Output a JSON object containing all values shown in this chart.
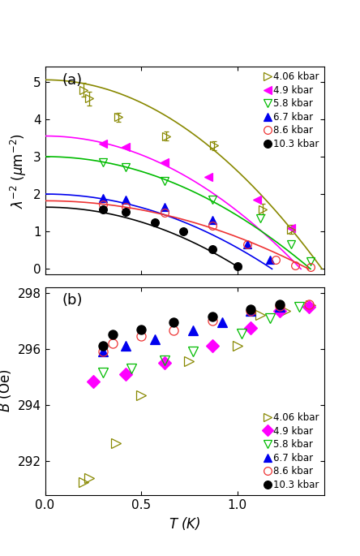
{
  "panel_a": {
    "title": "(a)",
    "ylabel": "$\\lambda^{-2}$ ($\\mu$m$^{-2}$)",
    "ylim": [
      -0.15,
      5.4
    ],
    "yticks": [
      0,
      1,
      2,
      3,
      4,
      5
    ],
    "series": [
      {
        "label": "4.06 kbar",
        "color": "#888800",
        "marker": ">",
        "filled": false,
        "data_x": [
          0.2,
          0.23,
          0.38,
          0.63,
          0.88,
          1.13,
          1.28
        ],
        "data_y": [
          4.78,
          4.55,
          4.05,
          3.55,
          3.3,
          1.6,
          1.05
        ],
        "yerr": [
          0.18,
          0.18,
          0.12,
          0.12,
          0.12,
          0.15,
          0.12
        ],
        "has_errorbars": true,
        "curve_Tc": 1.44,
        "curve_y0": 5.05
      },
      {
        "label": "4.9 kbar",
        "color": "#FF00FF",
        "marker": "<",
        "filled": true,
        "data_x": [
          0.3,
          0.42,
          0.62,
          0.85,
          1.1,
          1.28
        ],
        "data_y": [
          3.35,
          3.25,
          2.85,
          2.45,
          1.85,
          1.1
        ],
        "has_errorbars": false,
        "curve_Tc": 1.33,
        "curve_y0": 3.55
      },
      {
        "label": "5.8 kbar",
        "color": "#00BB00",
        "marker": "v",
        "filled": false,
        "data_x": [
          0.3,
          0.42,
          0.62,
          0.87,
          1.12,
          1.28,
          1.38
        ],
        "data_y": [
          2.85,
          2.72,
          2.35,
          1.85,
          1.35,
          0.65,
          0.2
        ],
        "has_errorbars": false,
        "curve_Tc": 1.38,
        "curve_y0": 3.0
      },
      {
        "label": "6.7 kbar",
        "color": "#0000EE",
        "marker": "^",
        "filled": true,
        "data_x": [
          0.3,
          0.42,
          0.62,
          0.87,
          1.05,
          1.17
        ],
        "data_y": [
          1.9,
          1.85,
          1.65,
          1.3,
          0.65,
          0.25
        ],
        "has_errorbars": false,
        "curve_Tc": 1.18,
        "curve_y0": 2.0
      },
      {
        "label": "8.6 kbar",
        "color": "#EE3333",
        "marker": "o",
        "filled": false,
        "data_x": [
          0.3,
          0.42,
          0.62,
          0.87,
          1.05,
          1.2,
          1.3,
          1.38
        ],
        "data_y": [
          1.72,
          1.65,
          1.5,
          1.15,
          0.65,
          0.25,
          0.1,
          0.05
        ],
        "has_errorbars": false,
        "curve_Tc": 1.37,
        "curve_y0": 1.82
      },
      {
        "label": "10.3 kbar",
        "color": "#000000",
        "marker": "o",
        "filled": true,
        "data_x": [
          0.3,
          0.42,
          0.57,
          0.72,
          0.87,
          1.0
        ],
        "data_y": [
          1.6,
          1.52,
          1.25,
          1.0,
          0.52,
          0.07
        ],
        "has_errorbars": false,
        "curve_Tc": 1.02,
        "curve_y0": 1.65
      }
    ],
    "curve_colors": [
      "#888800",
      "#FF00FF",
      "#00BB00",
      "#0000EE",
      "#EE3333",
      "#000000"
    ]
  },
  "panel_b": {
    "title": "(b)",
    "ylabel": "$B$ (Oe)",
    "ylim": [
      290.8,
      298.2
    ],
    "yticks": [
      292,
      294,
      296,
      298
    ],
    "series": [
      {
        "label": "4.06 kbar",
        "color": "#888800",
        "marker": ">",
        "filled": false,
        "data_x": [
          0.2,
          0.23,
          0.37,
          0.5,
          0.75,
          1.0,
          1.12,
          1.25,
          1.38
        ],
        "data_y": [
          291.25,
          291.4,
          292.65,
          294.35,
          295.55,
          296.1,
          297.2,
          297.35,
          297.55
        ]
      },
      {
        "label": "4.9 kbar",
        "color": "#FF00FF",
        "marker": "D",
        "filled": true,
        "data_x": [
          0.25,
          0.42,
          0.62,
          0.87,
          1.07,
          1.22,
          1.37
        ],
        "data_y": [
          294.85,
          295.1,
          295.5,
          296.1,
          296.75,
          297.35,
          297.5
        ]
      },
      {
        "label": "5.8 kbar",
        "color": "#00BB00",
        "marker": "v",
        "filled": false,
        "data_x": [
          0.3,
          0.45,
          0.62,
          0.77,
          1.02,
          1.17,
          1.32
        ],
        "data_y": [
          295.15,
          295.3,
          295.6,
          295.9,
          296.55,
          297.1,
          297.5
        ]
      },
      {
        "label": "6.7 kbar",
        "color": "#0000EE",
        "marker": "^",
        "filled": true,
        "data_x": [
          0.3,
          0.42,
          0.57,
          0.77,
          0.92,
          1.07,
          1.22
        ],
        "data_y": [
          295.9,
          296.1,
          296.35,
          296.65,
          296.95,
          297.35,
          297.5
        ]
      },
      {
        "label": "8.6 kbar",
        "color": "#EE3333",
        "marker": "o",
        "filled": false,
        "data_x": [
          0.3,
          0.35,
          0.5,
          0.67,
          0.87,
          1.07,
          1.22,
          1.37
        ],
        "data_y": [
          295.9,
          296.2,
          296.45,
          296.65,
          297.0,
          297.35,
          297.52,
          297.58
        ]
      },
      {
        "label": "10.3 kbar",
        "color": "#000000",
        "marker": "o",
        "filled": true,
        "data_x": [
          0.3,
          0.35,
          0.5,
          0.67,
          0.87,
          1.07,
          1.22
        ],
        "data_y": [
          296.1,
          296.5,
          296.7,
          296.95,
          297.15,
          297.42,
          297.58
        ]
      }
    ]
  },
  "xlim": [
    0.0,
    1.45
  ],
  "xticks": [
    0.0,
    0.5,
    1.0
  ],
  "xlabel": "$T$ (K)"
}
